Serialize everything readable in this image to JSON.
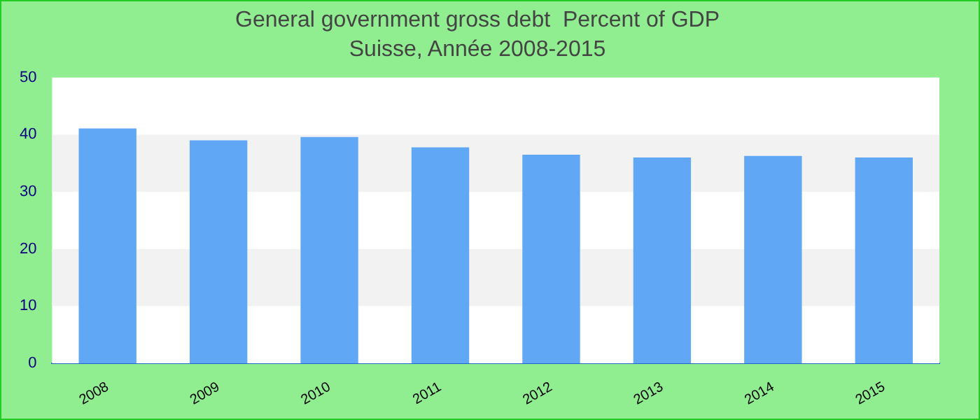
{
  "chart_data": {
    "type": "bar",
    "title": "General government gross debt  Percent of GDP",
    "subtitle": "Suisse, Année 2008-2015",
    "categories": [
      "2008",
      "2009",
      "2010",
      "2011",
      "2012",
      "2013",
      "2014",
      "2015"
    ],
    "values": [
      41.1,
      39.0,
      39.6,
      37.8,
      36.5,
      36.0,
      36.3,
      36.0
    ],
    "color": "#60a8f5",
    "ylim": [
      0,
      50
    ],
    "yticks": [
      0,
      10,
      20,
      30,
      40,
      50
    ],
    "bands": [
      {
        "axis": "y",
        "from": 10,
        "to": 20,
        "color": "#f2f2f2"
      },
      {
        "axis": "y",
        "from": 30,
        "to": 40,
        "color": "#f2f2f2"
      }
    ]
  }
}
